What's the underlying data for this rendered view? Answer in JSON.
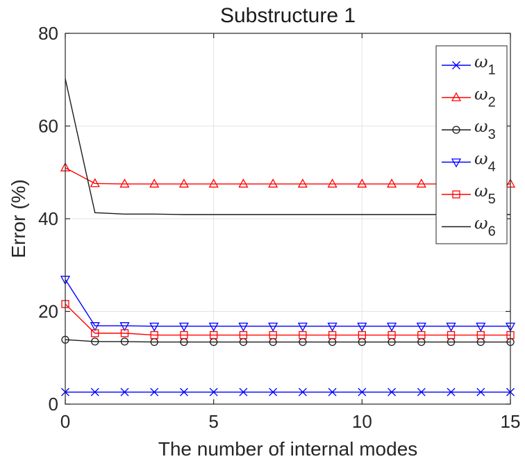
{
  "chart_data": {
    "type": "line",
    "title": "Substructure 1",
    "xlabel": "The number of internal modes",
    "ylabel": "Error (%)",
    "xlim": [
      0,
      15
    ],
    "ylim": [
      0,
      80
    ],
    "xticks": [
      0,
      5,
      10,
      15
    ],
    "yticks": [
      0,
      20,
      40,
      60,
      80
    ],
    "grid": true,
    "legend_position": "top-right",
    "x": [
      0,
      1,
      2,
      3,
      4,
      5,
      6,
      7,
      8,
      9,
      10,
      11,
      12,
      13,
      14,
      15
    ],
    "series": [
      {
        "legend_symbol": "ω",
        "legend_subscript": "1",
        "color": "#0000ff",
        "marker": "x",
        "values": [
          2.6,
          2.6,
          2.6,
          2.6,
          2.6,
          2.6,
          2.6,
          2.6,
          2.6,
          2.6,
          2.6,
          2.6,
          2.6,
          2.6,
          2.6,
          2.6
        ]
      },
      {
        "legend_symbol": "ω",
        "legend_subscript": "2",
        "color": "#ff0000",
        "marker": "triangle-up",
        "values": [
          51.0,
          47.6,
          47.5,
          47.5,
          47.5,
          47.5,
          47.5,
          47.5,
          47.5,
          47.5,
          47.5,
          47.5,
          47.5,
          47.5,
          47.5,
          47.5
        ]
      },
      {
        "legend_symbol": "ω",
        "legend_subscript": "3",
        "color": "#1a1a1a",
        "marker": "circle",
        "values": [
          13.9,
          13.5,
          13.5,
          13.4,
          13.4,
          13.4,
          13.4,
          13.4,
          13.4,
          13.4,
          13.4,
          13.4,
          13.4,
          13.4,
          13.4,
          13.4
        ]
      },
      {
        "legend_symbol": "ω",
        "legend_subscript": "4",
        "color": "#0000ff",
        "marker": "triangle-down",
        "values": [
          26.9,
          16.9,
          16.9,
          16.8,
          16.8,
          16.8,
          16.8,
          16.8,
          16.8,
          16.8,
          16.8,
          16.8,
          16.8,
          16.8,
          16.8,
          16.8
        ]
      },
      {
        "legend_symbol": "ω",
        "legend_subscript": "5",
        "color": "#ff0000",
        "marker": "square",
        "values": [
          21.6,
          15.3,
          15.3,
          14.9,
          14.9,
          14.9,
          14.9,
          14.9,
          14.9,
          14.9,
          14.9,
          14.9,
          14.9,
          14.9,
          14.9,
          14.9
        ]
      },
      {
        "legend_symbol": "ω",
        "legend_subscript": "6",
        "color": "#1a1a1a",
        "marker": "none",
        "values": [
          70.2,
          41.3,
          41.0,
          41.0,
          40.9,
          40.9,
          40.9,
          40.9,
          40.9,
          40.9,
          40.9,
          40.9,
          40.9,
          40.9,
          40.9,
          40.9
        ]
      }
    ]
  }
}
